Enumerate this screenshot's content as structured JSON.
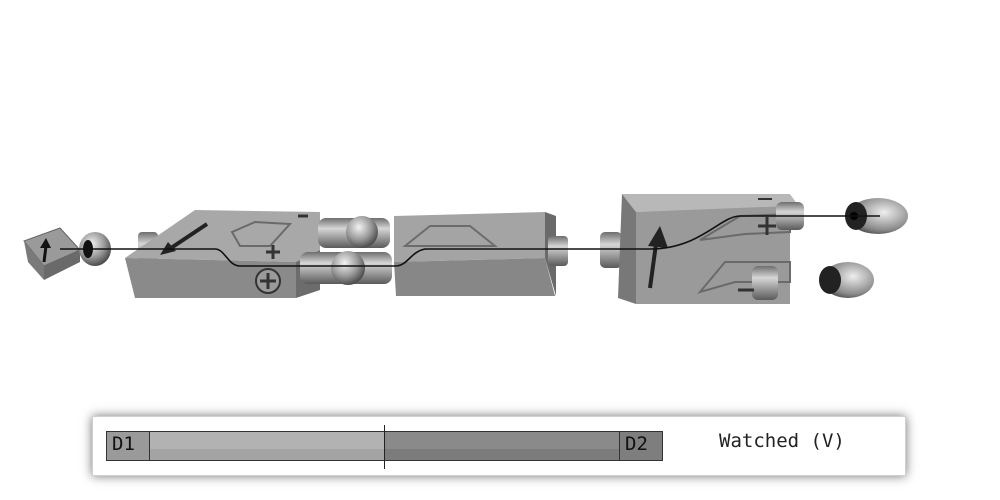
{
  "detectors": {
    "left_label": "D1",
    "right_label": "D2"
  },
  "readout": {
    "label": "Watched (V)",
    "split_fraction": 0.5
  },
  "symbols": {
    "plus": "+",
    "minus": "−",
    "arrow_icon": "up-arrow-icon",
    "photon_icon": "photon-source-icon",
    "detector_icon": "detector-eye-icon"
  },
  "colors": {
    "box_face": "#8c8c8c",
    "box_top": "#b4b4b4",
    "beam": "#111111",
    "background": "#ffffff"
  }
}
